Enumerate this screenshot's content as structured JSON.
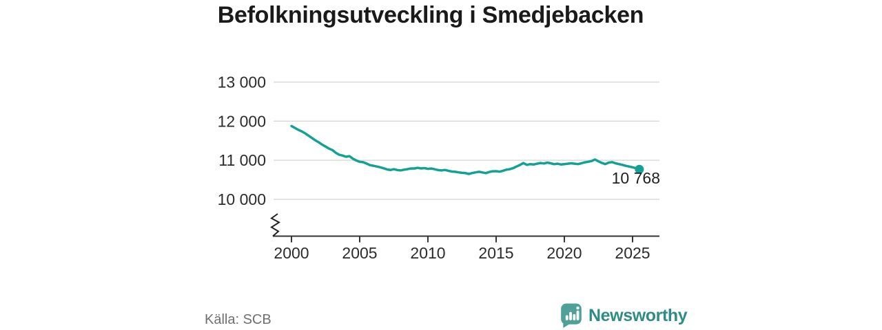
{
  "chart_data": {
    "type": "line",
    "title": "Befolkningsutveckling i Smedjebacken",
    "series_name": "Befolkning",
    "x_unit": "year",
    "ylim": [
      10000,
      13000
    ],
    "axis_break": true,
    "grid": "horizontal",
    "yticks": [
      {
        "value": 13000,
        "label": "13 000"
      },
      {
        "value": 12000,
        "label": "12 000"
      },
      {
        "value": 11000,
        "label": "11 000"
      },
      {
        "value": 10000,
        "label": "10 000"
      }
    ],
    "xticks": [
      {
        "value": 2000,
        "label": "2000"
      },
      {
        "value": 2005,
        "label": "2005"
      },
      {
        "value": 2010,
        "label": "2010"
      },
      {
        "value": 2015,
        "label": "2015"
      },
      {
        "value": 2020,
        "label": "2020"
      },
      {
        "value": 2025,
        "label": "2025"
      }
    ],
    "end_label": "10 768",
    "last_value": 10768,
    "series": [
      [
        2000.0,
        11877
      ],
      [
        2000.25,
        11830
      ],
      [
        2000.5,
        11780
      ],
      [
        2000.75,
        11740
      ],
      [
        2001.0,
        11690
      ],
      [
        2001.25,
        11630
      ],
      [
        2001.5,
        11570
      ],
      [
        2001.75,
        11510
      ],
      [
        2002.0,
        11460
      ],
      [
        2002.25,
        11400
      ],
      [
        2002.5,
        11350
      ],
      [
        2002.75,
        11300
      ],
      [
        2003.0,
        11260
      ],
      [
        2003.25,
        11190
      ],
      [
        2003.5,
        11140
      ],
      [
        2003.75,
        11120
      ],
      [
        2004.0,
        11090
      ],
      [
        2004.25,
        11105
      ],
      [
        2004.5,
        11040
      ],
      [
        2004.75,
        10995
      ],
      [
        2005.0,
        10960
      ],
      [
        2005.25,
        10950
      ],
      [
        2005.5,
        10915
      ],
      [
        2005.75,
        10875
      ],
      [
        2006.0,
        10860
      ],
      [
        2006.25,
        10840
      ],
      [
        2006.5,
        10820
      ],
      [
        2006.75,
        10795
      ],
      [
        2007.0,
        10765
      ],
      [
        2007.25,
        10750
      ],
      [
        2007.5,
        10772
      ],
      [
        2007.75,
        10750
      ],
      [
        2008.0,
        10740
      ],
      [
        2008.25,
        10758
      ],
      [
        2008.5,
        10772
      ],
      [
        2008.75,
        10790
      ],
      [
        2009.0,
        10788
      ],
      [
        2009.25,
        10806
      ],
      [
        2009.5,
        10790
      ],
      [
        2009.75,
        10800
      ],
      [
        2010.0,
        10780
      ],
      [
        2010.25,
        10788
      ],
      [
        2010.5,
        10770
      ],
      [
        2010.75,
        10748
      ],
      [
        2011.0,
        10740
      ],
      [
        2011.25,
        10752
      ],
      [
        2011.5,
        10730
      ],
      [
        2011.75,
        10712
      ],
      [
        2012.0,
        10705
      ],
      [
        2012.25,
        10690
      ],
      [
        2012.5,
        10678
      ],
      [
        2012.75,
        10670
      ],
      [
        2013.0,
        10650
      ],
      [
        2013.25,
        10672
      ],
      [
        2013.5,
        10690
      ],
      [
        2013.75,
        10705
      ],
      [
        2014.0,
        10688
      ],
      [
        2014.25,
        10670
      ],
      [
        2014.5,
        10700
      ],
      [
        2014.75,
        10718
      ],
      [
        2015.0,
        10720
      ],
      [
        2015.25,
        10708
      ],
      [
        2015.5,
        10730
      ],
      [
        2015.75,
        10758
      ],
      [
        2016.0,
        10772
      ],
      [
        2016.25,
        10800
      ],
      [
        2016.5,
        10840
      ],
      [
        2016.75,
        10880
      ],
      [
        2017.0,
        10930
      ],
      [
        2017.25,
        10882
      ],
      [
        2017.5,
        10902
      ],
      [
        2017.75,
        10890
      ],
      [
        2018.0,
        10912
      ],
      [
        2018.25,
        10930
      ],
      [
        2018.5,
        10918
      ],
      [
        2018.75,
        10940
      ],
      [
        2019.0,
        10922
      ],
      [
        2019.25,
        10900
      ],
      [
        2019.5,
        10912
      ],
      [
        2019.75,
        10892
      ],
      [
        2020.0,
        10902
      ],
      [
        2020.25,
        10912
      ],
      [
        2020.5,
        10922
      ],
      [
        2020.75,
        10912
      ],
      [
        2021.0,
        10902
      ],
      [
        2021.25,
        10922
      ],
      [
        2021.5,
        10948
      ],
      [
        2021.75,
        10962
      ],
      [
        2022.0,
        10980
      ],
      [
        2022.25,
        11020
      ],
      [
        2022.5,
        10972
      ],
      [
        2022.75,
        10932
      ],
      [
        2023.0,
        10902
      ],
      [
        2023.25,
        10940
      ],
      [
        2023.5,
        10952
      ],
      [
        2023.75,
        10922
      ],
      [
        2024.0,
        10902
      ],
      [
        2024.25,
        10882
      ],
      [
        2024.5,
        10858
      ],
      [
        2024.75,
        10840
      ],
      [
        2025.0,
        10820
      ],
      [
        2025.25,
        10795
      ],
      [
        2025.5,
        10768
      ]
    ]
  },
  "footer": {
    "source": "Källa: SCB",
    "brand": "Newsworthy"
  },
  "colors": {
    "accent": "#13A095",
    "grid": "#DBDBDB",
    "axis": "#333333",
    "tick_label": "#2B2B2B",
    "title": "#1A1A1A",
    "source": "#6F6F6F",
    "logo_icon": "#4FA099",
    "logo_text": "#2E8C86"
  }
}
